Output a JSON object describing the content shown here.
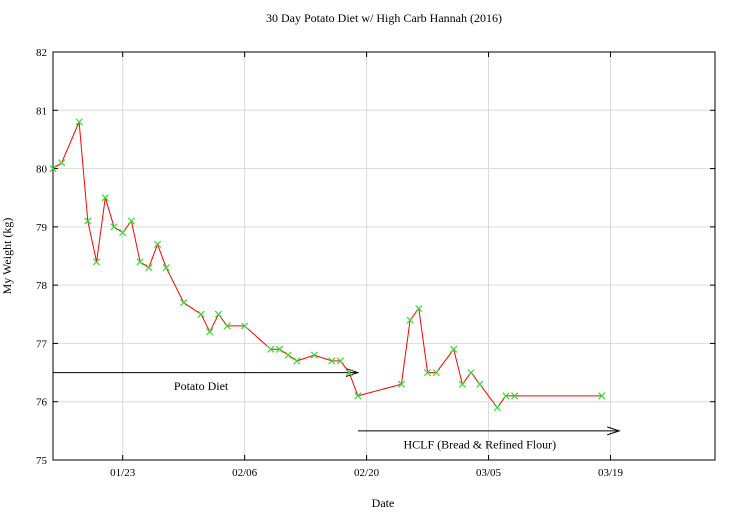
{
  "chart_data": {
    "type": "line",
    "title": "30 Day Potato Diet w/ High Carb Hannah (2016)",
    "xlabel": "Date",
    "ylabel": "My Weight (kg)",
    "ylim": [
      75,
      82
    ],
    "yticks": [
      75,
      76,
      77,
      78,
      79,
      80,
      81,
      82
    ],
    "xlim": [
      "2016-01-15",
      "2016-03-31"
    ],
    "xticks": [
      {
        "date": "2016-01-23",
        "label": "01/23"
      },
      {
        "date": "2016-02-06",
        "label": "02/06"
      },
      {
        "date": "2016-02-20",
        "label": "02/20"
      },
      {
        "date": "2016-03-05",
        "label": "03/05"
      },
      {
        "date": "2016-03-19",
        "label": "03/19"
      }
    ],
    "grid": true,
    "line_color": "#ff0000",
    "marker_color": "#33dd33",
    "series": [
      {
        "x": [
          "2016-01-15",
          "2016-01-16",
          "2016-01-18",
          "2016-01-19",
          "2016-01-20",
          "2016-01-21",
          "2016-01-22",
          "2016-01-23",
          "2016-01-24",
          "2016-01-25",
          "2016-01-26",
          "2016-01-27",
          "2016-01-28",
          "2016-01-30",
          "2016-02-01",
          "2016-02-02",
          "2016-02-03",
          "2016-02-04",
          "2016-02-06",
          "2016-02-09",
          "2016-02-10",
          "2016-02-11",
          "2016-02-12",
          "2016-02-14",
          "2016-02-16",
          "2016-02-17",
          "2016-02-18",
          "2016-02-19",
          "2016-02-24",
          "2016-02-25",
          "2016-02-26",
          "2016-02-27",
          "2016-02-28",
          "2016-03-01",
          "2016-03-02",
          "2016-03-03",
          "2016-03-04",
          "2016-03-06",
          "2016-03-07",
          "2016-03-08",
          "2016-03-18"
        ],
        "values": [
          80.0,
          80.1,
          80.8,
          79.1,
          78.4,
          79.5,
          79.0,
          78.9,
          79.1,
          78.4,
          78.3,
          78.7,
          78.3,
          77.7,
          77.5,
          77.2,
          77.5,
          77.3,
          77.3,
          76.9,
          76.9,
          76.8,
          76.7,
          76.8,
          76.7,
          76.7,
          76.5,
          76.1,
          76.3,
          77.4,
          77.6,
          76.5,
          76.5,
          76.9,
          76.3,
          76.5,
          76.3,
          75.9,
          76.1,
          76.1,
          76.1
        ]
      }
    ],
    "annotations": [
      {
        "text": "Potato Diet",
        "from": "2016-01-15",
        "to": "2016-02-19",
        "y": 76.5,
        "label_x": "2016-02-01",
        "label_y": 76.27
      },
      {
        "text": "HCLF (Bread & Refined Flour)",
        "from": "2016-02-19",
        "to": "2016-03-20",
        "y": 75.5,
        "label_x": "2016-03-04",
        "label_y": 75.27
      }
    ]
  }
}
